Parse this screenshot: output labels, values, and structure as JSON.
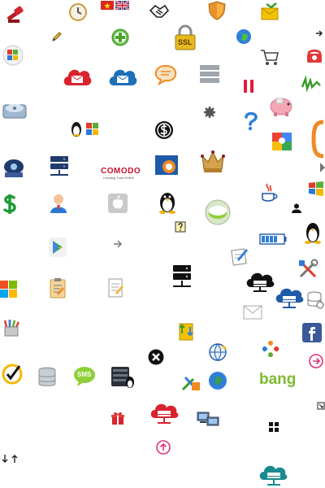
{
  "sheet": {
    "label_comodo_brand": "COMODO",
    "label_comodo_tag": "Creating Trust Online",
    "label_ssl": "SSL",
    "label_sms": "SMS",
    "label_bang": "bang",
    "label_linux_windows": "",
    "colors": {
      "red": "#d9232d",
      "blue": "#1d6fb8",
      "green": "#7dbb2f",
      "orange": "#f08a24",
      "pink": "#e2337a",
      "navy": "#1f3b6b",
      "teal": "#1a8a8f"
    }
  }
}
